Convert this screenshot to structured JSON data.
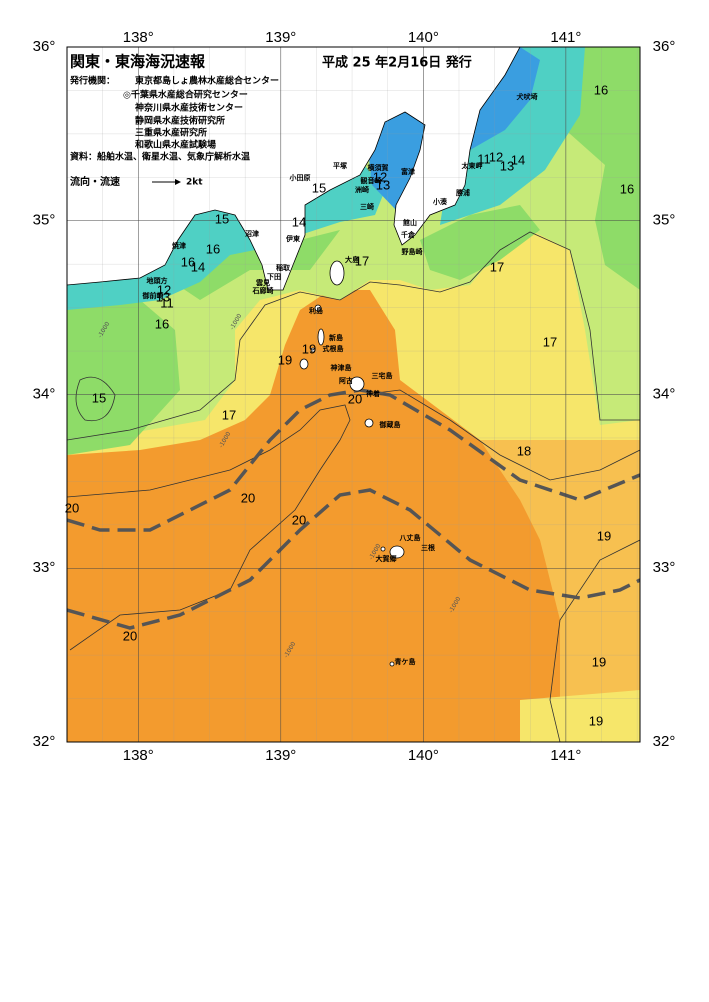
{
  "header": {
    "title": "関東・東海海況速報",
    "issue_date": "平成 25 年2月16日 発行",
    "issuer_label": "発行機関：",
    "issuers": [
      "東京都島しょ農林水産総合センター",
      "◎千葉県水産総合研究センター",
      "神奈川県水産技術センター",
      "静岡県水産技術研究所",
      "三重県水産研究所",
      "和歌山県水産試験場"
    ],
    "sources": "資料：船舶水温、衛星水温、気象庁解析水温",
    "current_legend": "流向・流速",
    "current_speed": "2kt"
  },
  "map": {
    "xlim": [
      137.5,
      141.52
    ],
    "ylim": [
      32,
      36
    ],
    "xticks": [
      {
        "value": 138,
        "label": "138°"
      },
      {
        "value": 139,
        "label": "139°"
      },
      {
        "value": 140,
        "label": "140°"
      },
      {
        "value": 141,
        "label": "141°"
      }
    ],
    "yticks": [
      {
        "value": 36,
        "label": "36°"
      },
      {
        "value": 35,
        "label": "35°"
      },
      {
        "value": 34,
        "label": "34°"
      },
      {
        "value": 33,
        "label": "33°"
      },
      {
        "value": 32,
        "label": "32°"
      }
    ],
    "grid": true,
    "place_names": [
      "犬吠埼",
      "太東岬",
      "勝浦",
      "小湊",
      "富津",
      "横須賀",
      "平塚",
      "観音崎",
      "洲崎",
      "三崎",
      "館山",
      "千倉",
      "野島崎",
      "小田原",
      "伊東",
      "稲取",
      "下田",
      "雲見",
      "石廊崎",
      "沼津",
      "焼津",
      "地頭方",
      "御前崎",
      "大島",
      "利島",
      "新島",
      "式根島",
      "神津島",
      "三宅島",
      "阿古",
      "神着",
      "御蔵島",
      "八丈島",
      "三根",
      "大賀郷",
      "青ケ島"
    ],
    "isotherm_labels": [
      16,
      16,
      11,
      12,
      13,
      14,
      15,
      12,
      13,
      15,
      14,
      16,
      16,
      14,
      17,
      17,
      12,
      13,
      11,
      16,
      17,
      19,
      19,
      15,
      17,
      20,
      18,
      20,
      20,
      20,
      19,
      20,
      19,
      19
    ],
    "depth_labels": [
      "-1000",
      "-1000",
      "-1000",
      "-1000",
      "-1000",
      "-1000"
    ]
  }
}
